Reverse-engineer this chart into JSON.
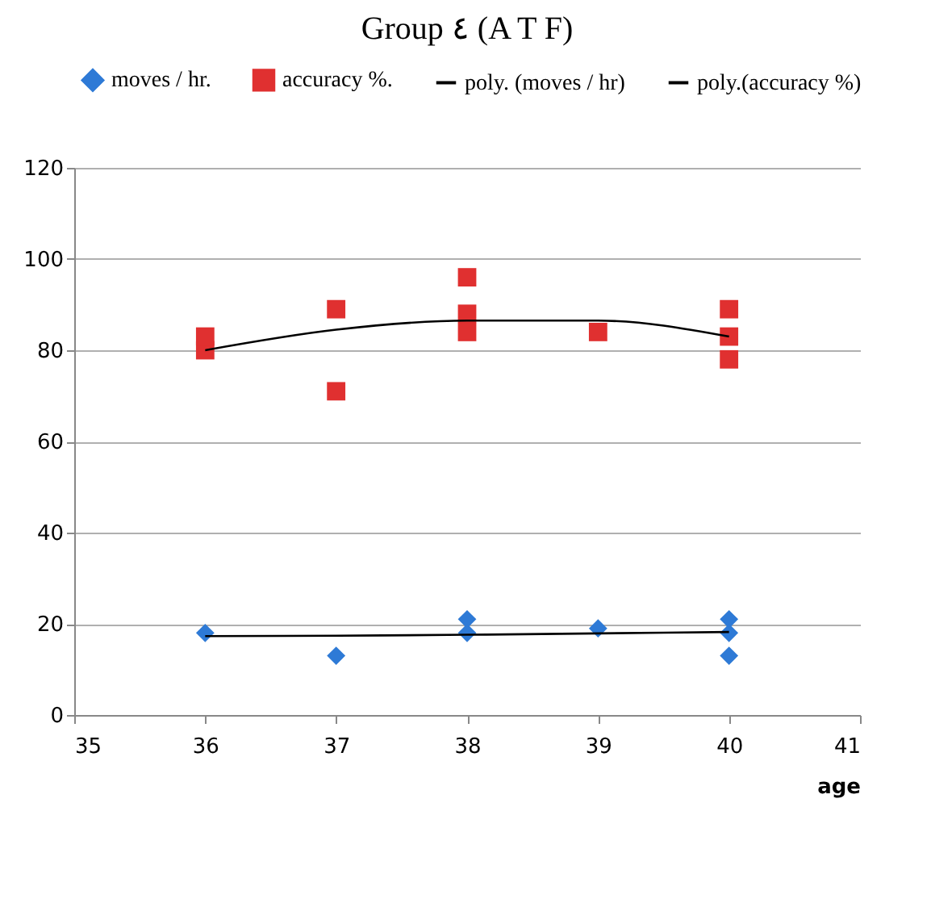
{
  "chart_data": {
    "type": "scatter",
    "title": "Group ٤ (A T F)",
    "xlabel": "age",
    "xlim": [
      35,
      41
    ],
    "xticks": [
      35,
      36,
      37,
      38,
      39,
      40,
      41
    ],
    "ylim": [
      0,
      120
    ],
    "yticks": [
      0,
      20,
      40,
      60,
      80,
      100,
      120
    ],
    "grid": "y",
    "legend": "top",
    "series": [
      {
        "name": "moves / hr.",
        "type": "scatter",
        "marker": "diamond",
        "color": "#2e7ad6",
        "x": [
          36,
          37,
          38,
          38,
          39,
          40,
          40,
          40
        ],
        "values": [
          18,
          13,
          21,
          18,
          19,
          21,
          18,
          13
        ]
      },
      {
        "name": "accuracy %.",
        "type": "scatter",
        "marker": "square",
        "color": "#e03030",
        "x": [
          36,
          36,
          37,
          37,
          38,
          38,
          38,
          39,
          40,
          40,
          40
        ],
        "values": [
          80,
          83,
          89,
          71,
          96,
          88,
          84,
          84,
          89,
          83,
          78
        ]
      },
      {
        "name": "poly. (moves / hr)",
        "type": "line",
        "marker": "none",
        "color": "#000000",
        "x": [
          36,
          37,
          38,
          39,
          40
        ],
        "values": [
          17.3,
          17.4,
          17.6,
          17.9,
          18.2
        ]
      },
      {
        "name": "poly.(accuracy %)",
        "type": "line",
        "marker": "none",
        "color": "#000000",
        "x": [
          36,
          37,
          38,
          39,
          40
        ],
        "values": [
          80,
          84.5,
          86.5,
          86.5,
          83
        ]
      }
    ]
  }
}
